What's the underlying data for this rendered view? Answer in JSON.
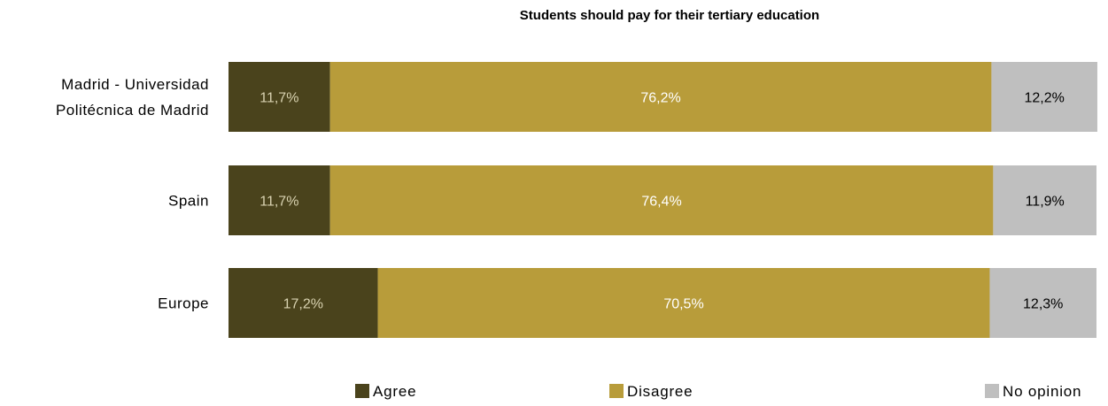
{
  "chart_data": {
    "type": "bar",
    "orientation": "horizontal",
    "stacked": "100%",
    "title": "Students should pay for their tertiary education",
    "categories": [
      [
        "Madrid - Universidad",
        "Politécnica de Madrid"
      ],
      [
        "Spain"
      ],
      [
        "Europe"
      ]
    ],
    "series": [
      {
        "name": "Agree",
        "color": "#4a431c",
        "label_color": "#d8d2b0",
        "values": [
          11.7,
          11.7,
          17.2
        ],
        "labels": [
          "11,7%",
          "11,7%",
          "17,2%"
        ]
      },
      {
        "name": "Disagree",
        "color": "#b89c3a",
        "label_color": "#ffffff",
        "values": [
          76.2,
          76.4,
          70.5
        ],
        "labels": [
          "76,2%",
          "76,4%",
          "70,5%"
        ]
      },
      {
        "name": "No opinion",
        "color": "#bfbfbf",
        "label_color": "#000000",
        "values": [
          12.2,
          11.9,
          12.3
        ],
        "labels": [
          "12,2%",
          "11,9%",
          "12,3%"
        ]
      }
    ],
    "xlim": [
      0,
      100
    ],
    "grid": false,
    "legend_position": "bottom"
  }
}
